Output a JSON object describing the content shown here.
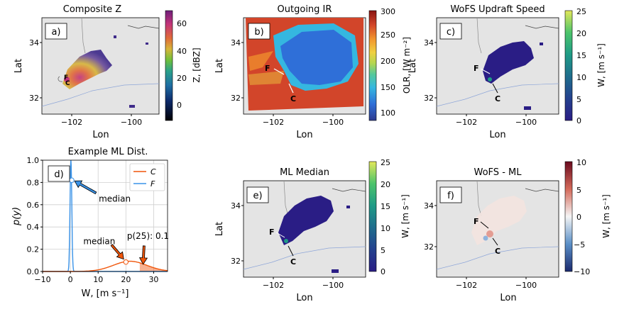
{
  "panels": {
    "a": {
      "letter": "a)",
      "title": "Composite Z",
      "cbar_label": "Z, [dBZ]",
      "cbar_ticks": [
        "60",
        "40",
        "20",
        "0"
      ]
    },
    "b": {
      "letter": "b)",
      "title": "Outgoing IR",
      "cbar_label": "OLR, [W m⁻²]",
      "cbar_ticks": [
        "300",
        "250",
        "200",
        "150",
        "100"
      ]
    },
    "c": {
      "letter": "c)",
      "title": "WoFS Updraft Speed",
      "cbar_label": "W, [m s⁻¹]",
      "cbar_ticks": [
        "25",
        "20",
        "15",
        "10",
        "5",
        "0"
      ]
    },
    "d": {
      "letter": "d)",
      "title": "Example ML Dist."
    },
    "e": {
      "letter": "e)",
      "title": "ML Median",
      "cbar_label": "W, [m s⁻¹]",
      "cbar_ticks": [
        "25",
        "20",
        "15",
        "10",
        "5",
        "0"
      ]
    },
    "f": {
      "letter": "f)",
      "title": "WoFS - ML",
      "cbar_label": "W, [m s⁻¹]",
      "cbar_ticks": [
        "10",
        "5",
        "0",
        "−5",
        "−10"
      ]
    }
  },
  "map_axes": {
    "xlabel": "Lon",
    "ylabel": "Lat",
    "xticks": [
      "−102",
      "−100"
    ],
    "yticks": [
      "34",
      "32"
    ]
  },
  "markers": {
    "F": "F",
    "C": "C"
  },
  "colors": {
    "C": "#f0550a",
    "F": "#3a93e8",
    "olr_warm": "#d2452a",
    "olr_cold": "#2f6fd8",
    "updraft_low": "#2a1d85",
    "map_bg": "#e4e4e4"
  },
  "chart_data": {
    "type": "line",
    "title": "Example ML Dist.",
    "xlabel": "W, [m s⁻¹]",
    "ylabel": "p(y)",
    "xlim": [
      -10,
      35
    ],
    "ylim": [
      0,
      1.0
    ],
    "xticks": [
      "−10",
      "0",
      "10",
      "20",
      "30"
    ],
    "yticks": [
      "0.0",
      "0.2",
      "0.4",
      "0.6",
      "0.8",
      "1.0"
    ],
    "legend": [
      "C",
      "F"
    ],
    "grid": true,
    "series": [
      {
        "name": "F",
        "color": "#3a93e8",
        "type": "narrow",
        "median": 0.5,
        "median_p": 0.82
      },
      {
        "name": "C",
        "color": "#f0550a",
        "type": "broad",
        "median": 20,
        "median_p": 0.085
      }
    ],
    "annotations": {
      "median_F": "median",
      "median_C": "median",
      "p25_text": "p(25): 0.1",
      "p25_value": 0.1,
      "p25_x": 25
    }
  }
}
